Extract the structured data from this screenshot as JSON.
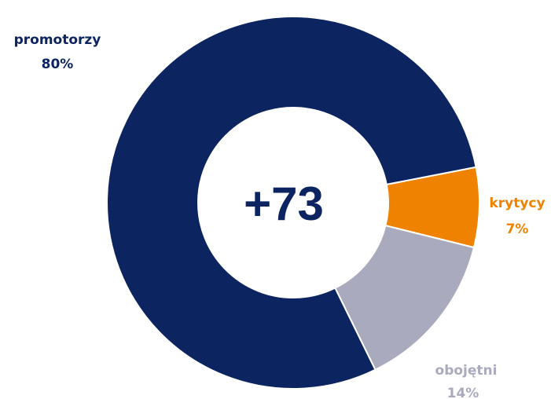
{
  "chart_data": {
    "type": "pie",
    "donut": true,
    "center_label": "+73",
    "start_angle_deg": 79,
    "direction": "clockwise",
    "slices": [
      {
        "label": "krytycy",
        "value_label": "7%",
        "value": 7,
        "color": "#ef8200"
      },
      {
        "label": "obojętni",
        "value_label": "14%",
        "value": 14,
        "color": "#a9aabe"
      },
      {
        "label": "promotorzy",
        "value_label": "80%",
        "value": 80,
        "color": "#0c2460"
      }
    ],
    "colors": {
      "center_text": "#0c2460",
      "background": "#ffffff"
    }
  }
}
